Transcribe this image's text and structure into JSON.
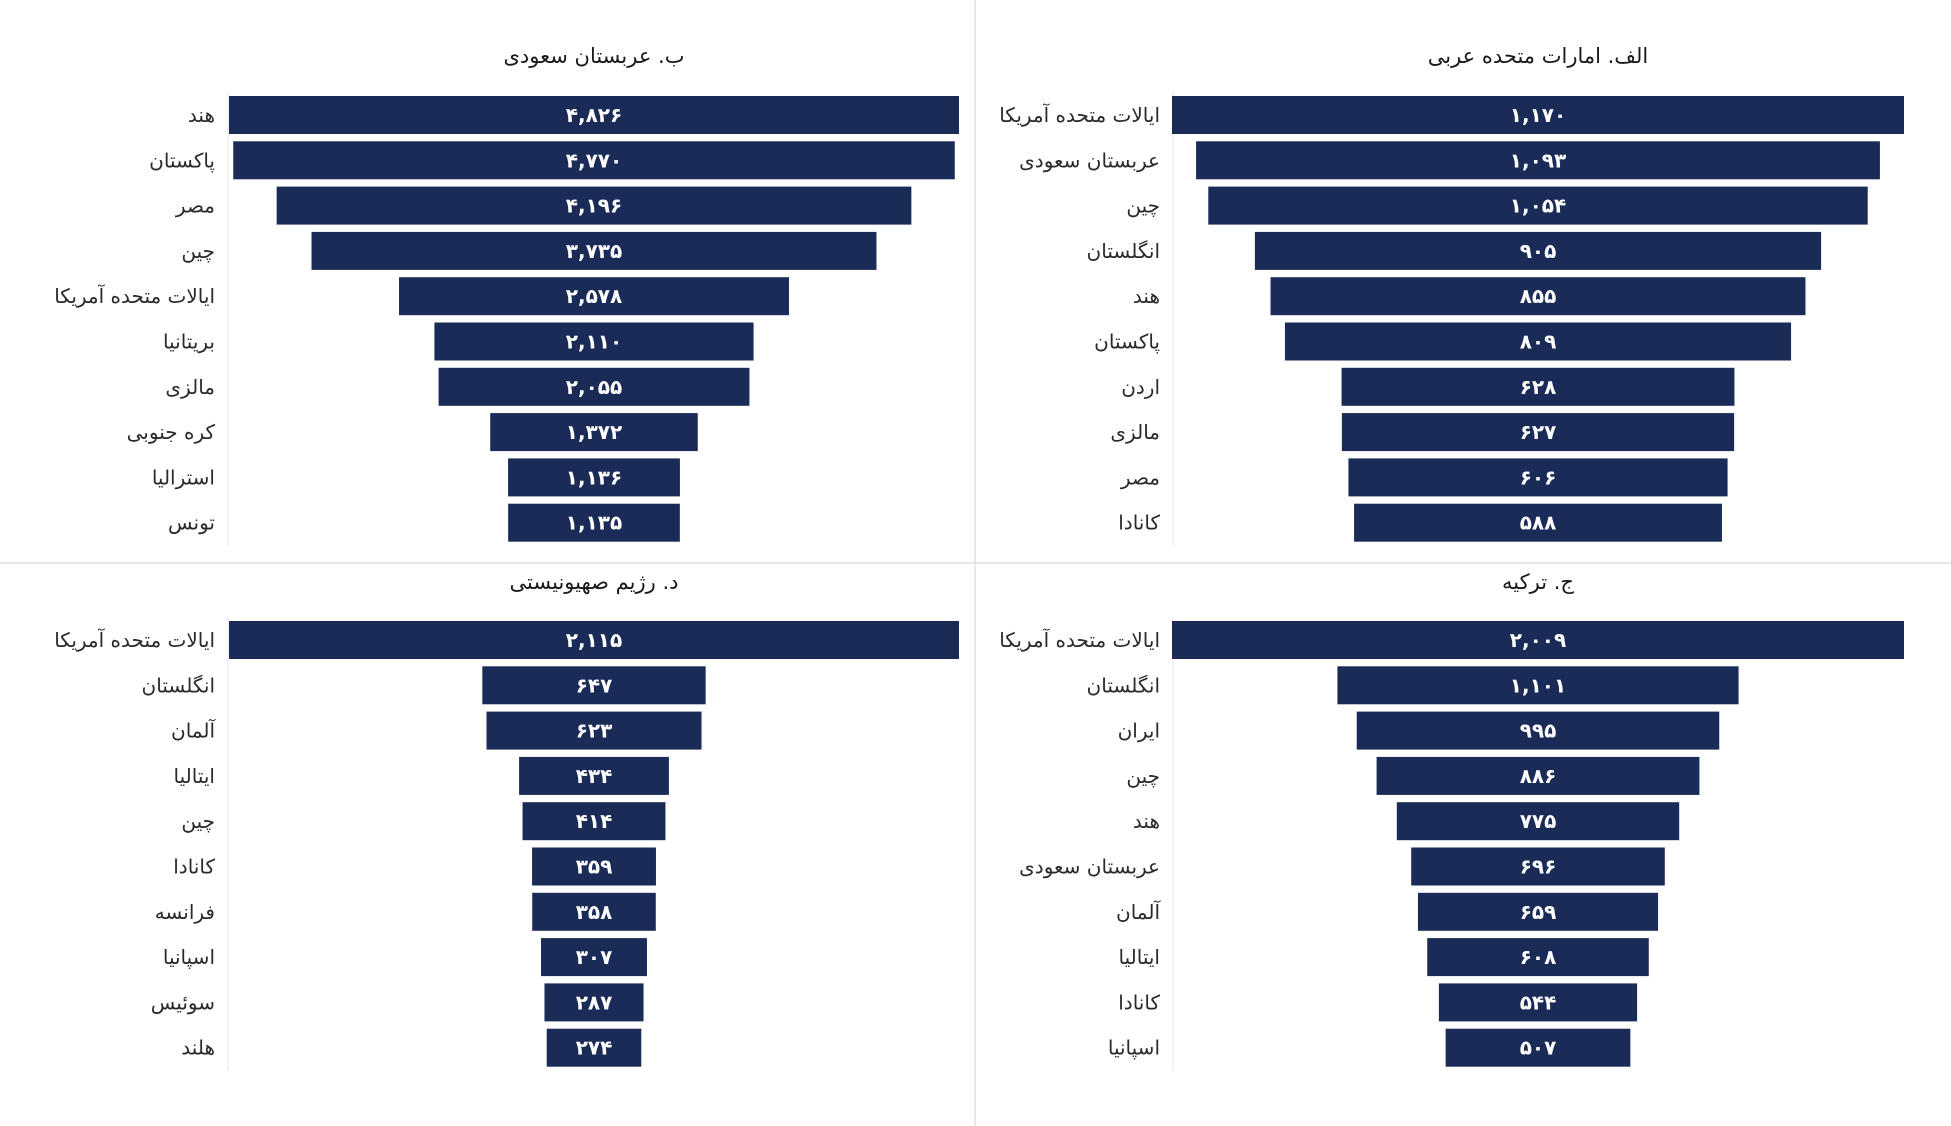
{
  "colors": {
    "bar": "#1b2b58",
    "value_text": "#ffffff",
    "label_text": "#2a2a2a",
    "divider": "#d9d9d9"
  },
  "chart_data": [
    {
      "id": "uae",
      "type": "bar",
      "orientation": "horizontal-centered-funnel",
      "title": "الف. امارات متحده عربی",
      "categories": [
        "ایالات متحده آمریکا",
        "عربستان سعودی",
        "چین",
        "انگلستان",
        "هند",
        "پاکستان",
        "اردن",
        "مالزی",
        "مصر",
        "کانادا"
      ],
      "values": [
        1170,
        1093,
        1054,
        905,
        855,
        809,
        628,
        627,
        606,
        588
      ],
      "value_labels": [
        "۱,۱۷۰",
        "۱,۰۹۳",
        "۱,۰۵۴",
        "۹۰۵",
        "۸۵۵",
        "۸۰۹",
        "۶۲۸",
        "۶۲۷",
        "۶۰۶",
        "۵۸۸"
      ]
    },
    {
      "id": "saudi",
      "type": "bar",
      "orientation": "horizontal-centered-funnel",
      "title": "ب. عربستان سعودی",
      "categories": [
        "هند",
        "پاکستان",
        "مصر",
        "چین",
        "ایالات متحده آمریکا",
        "بریتانیا",
        "مالزی",
        "کره جنوبی",
        "استرالیا",
        "تونس"
      ],
      "values": [
        4826,
        4770,
        4196,
        3735,
        2578,
        2110,
        2055,
        1372,
        1136,
        1135
      ],
      "value_labels": [
        "۴,۸۲۶",
        "۴,۷۷۰",
        "۴,۱۹۶",
        "۳,۷۳۵",
        "۲,۵۷۸",
        "۲,۱۱۰",
        "۲,۰۵۵",
        "۱,۳۷۲",
        "۱,۱۳۶",
        "۱,۱۳۵"
      ]
    },
    {
      "id": "turkey",
      "type": "bar",
      "orientation": "horizontal-centered-funnel",
      "title": "ج. ترکیه",
      "categories": [
        "ایالات متحده آمریکا",
        "انگلستان",
        "ایران",
        "چین",
        "هند",
        "عربستان سعودی",
        "آلمان",
        "ایتالیا",
        "کانادا",
        "اسپانیا"
      ],
      "values": [
        2009,
        1101,
        995,
        886,
        775,
        696,
        659,
        608,
        544,
        507
      ],
      "value_labels": [
        "۲,۰۰۹",
        "۱,۱۰۱",
        "۹۹۵",
        "۸۸۶",
        "۷۷۵",
        "۶۹۶",
        "۶۵۹",
        "۶۰۸",
        "۵۴۴",
        "۵۰۷"
      ]
    },
    {
      "id": "israel",
      "type": "bar",
      "orientation": "horizontal-centered-funnel",
      "title": "د. رژیم صهیونیستی",
      "categories": [
        "ایالات متحده آمریکا",
        "انگلستان",
        "آلمان",
        "ایتالیا",
        "چین",
        "کانادا",
        "فرانسه",
        "اسپانیا",
        "سوئیس",
        "هلند"
      ],
      "values": [
        2115,
        647,
        623,
        434,
        414,
        359,
        358,
        307,
        287,
        274
      ],
      "value_labels": [
        "۲,۱۱۵",
        "۶۴۷",
        "۶۲۳",
        "۴۳۴",
        "۴۱۴",
        "۳۵۹",
        "۳۵۸",
        "۳۰۷",
        "۲۸۷",
        "۲۷۴"
      ]
    }
  ]
}
